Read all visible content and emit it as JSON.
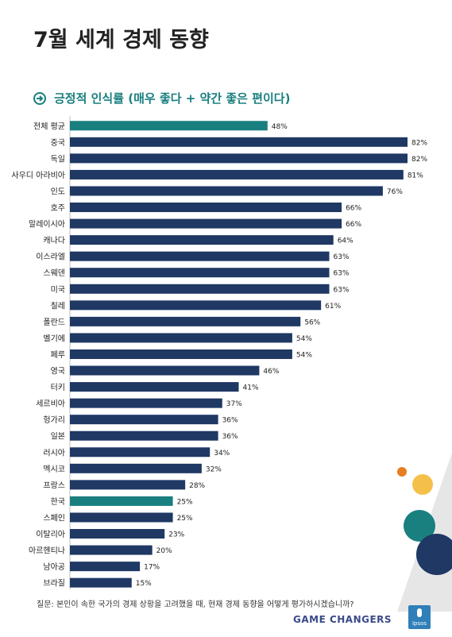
{
  "title": "7월 세계 경제 동향",
  "subtitle": "긍정적 인식률 (매우 좋다 + 약간 좋은 편이다)",
  "footer_question": "질문: 본인이 속한 국가의 경제 상황을 고려했을 때,  현재 경제 동향을 어떻게 평가하시겠습니까?",
  "brand": "GAME CHANGERS",
  "logo_text": "Ipsos",
  "colors": {
    "navy": "#1f3864",
    "teal": "#1a7f7f",
    "orange": "#e67e22",
    "yellow": "#f4c04a"
  },
  "chart_data": {
    "type": "bar",
    "orientation": "horizontal",
    "value_suffix": "%",
    "xlim": [
      0,
      82
    ],
    "categories": [
      "전체 평균",
      "중국",
      "독일",
      "사우디 아라비아",
      "인도",
      "호주",
      "말레이시아",
      "캐나다",
      "이스라엘",
      "스웨덴",
      "미국",
      "칠레",
      "폴란드",
      "벨기에",
      "페루",
      "영국",
      "터키",
      "세르비아",
      "헝가리",
      "일본",
      "러시아",
      "멕시코",
      "프랑스",
      "한국",
      "스페인",
      "이탈리아",
      "아르헨티나",
      "남아공",
      "브라질"
    ],
    "values": [
      48,
      82,
      82,
      81,
      76,
      66,
      66,
      64,
      63,
      63,
      63,
      61,
      56,
      54,
      54,
      46,
      41,
      37,
      36,
      36,
      34,
      32,
      28,
      25,
      25,
      23,
      20,
      17,
      15
    ],
    "highlight": [
      "전체 평균",
      "한국"
    ]
  }
}
